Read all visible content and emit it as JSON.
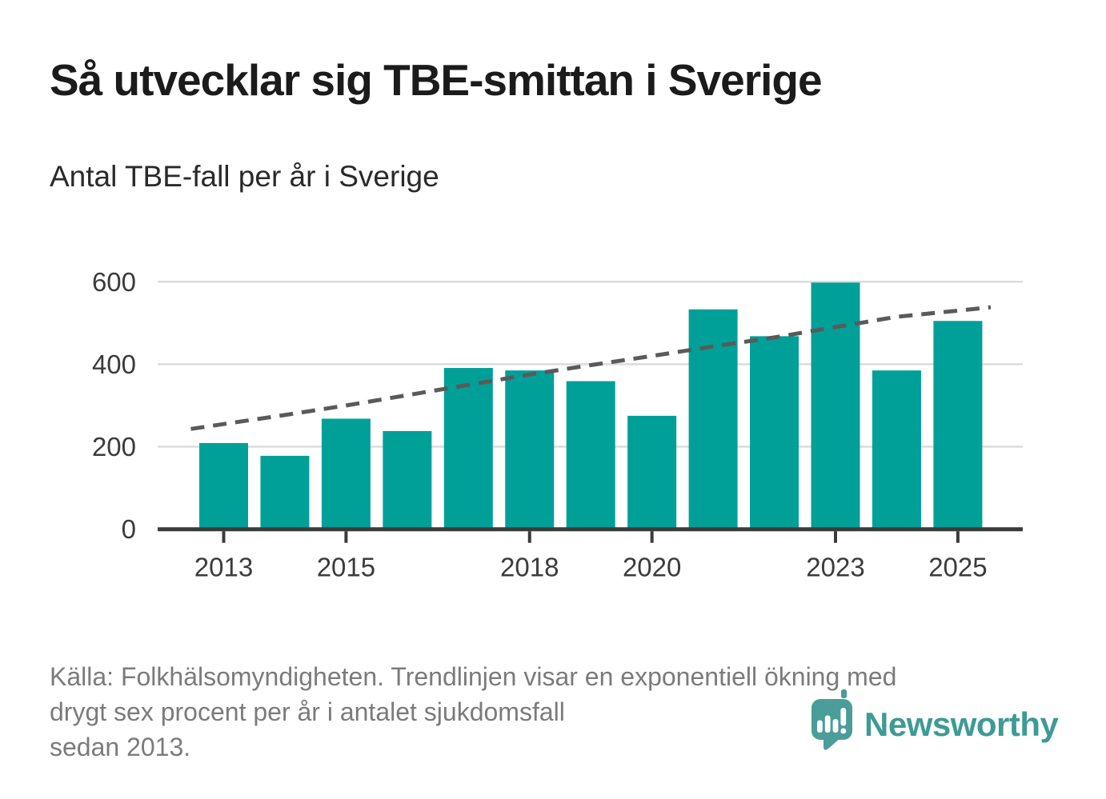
{
  "header": {
    "title": "Så utvecklar sig TBE-smittan i Sverige",
    "subtitle": "Antal TBE-fall per år i Sverige"
  },
  "chart_data": {
    "type": "bar",
    "title": "Så utvecklar sig TBE-smittan i Sverige",
    "subtitle": "Antal TBE-fall per år i Sverige",
    "xlabel": "",
    "ylabel": "Antal TBE-fall",
    "categories": [
      2013,
      2014,
      2015,
      2016,
      2017,
      2018,
      2019,
      2020,
      2021,
      2022,
      2023,
      2024,
      2025
    ],
    "series": [
      {
        "name": "Antal TBE-fall per år",
        "type": "bar",
        "values": [
          209,
          178,
          268,
          238,
          391,
          385,
          359,
          275,
          533,
          468,
          598,
          385,
          505
        ]
      },
      {
        "name": "Trendlinje (exponentiell ökning, drygt 6 % per år)",
        "type": "dashed-line",
        "values": [
          255,
          277,
          300,
          325,
          350,
          375,
          398,
          420,
          443,
          465,
          490,
          515,
          530
        ]
      }
    ],
    "ylim": [
      0,
      650
    ],
    "yticks": [
      0,
      200,
      400,
      600
    ],
    "xticks": [
      2013,
      2015,
      2018,
      2020,
      2023,
      2025
    ],
    "grid": true,
    "legend": "none",
    "colors": {
      "bar": "#00A099",
      "trend": "#5A5A5A",
      "axis": "#3A3A3A",
      "grid": "#DCDCDC",
      "tick_label": "#3B3B3B"
    }
  },
  "footer": {
    "lines": [
      "Källa: Folkhälsomyndigheten. Trendlinjen visar en exponentiell ökning med",
      "drygt sex procent per år i antalet sjukdomsfall",
      "sedan 2013."
    ]
  },
  "logo": {
    "brand": "Newsworthy",
    "color": "#3E9A95",
    "bubble_color": "#4A9D99"
  }
}
